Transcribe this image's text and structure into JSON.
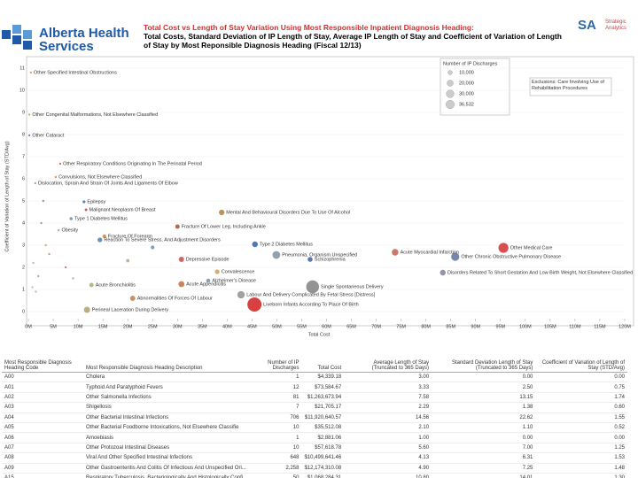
{
  "header": {
    "logo": "Alberta Health Services",
    "title": "Total Cost vs Length of Stay Variation Using Most Responsible Inpatient Diagnosis Heading:",
    "subtitle": "Total Costs, Standard Deviation of IP Length of Stay, Average IP Length of Stay and Coefficient of Variation of Length of Stay by Most Reponsible Diagnosis Heading (Fiscal 12/13)",
    "brand": "SA",
    "brand_sub": "Strategic Analytics"
  },
  "chart_data": {
    "type": "scatter",
    "x_label": "Total Cost",
    "y_label": "Coefficient of Variation of Length of Stay (STD/Avg)",
    "xlim": [
      0,
      120
    ],
    "xticks": [
      {
        "value": 0,
        "label": "0M"
      },
      {
        "value": 5,
        "label": "5M"
      },
      {
        "value": 10,
        "label": "10M"
      },
      {
        "value": 15,
        "label": "15M"
      },
      {
        "value": 20,
        "label": "20M"
      },
      {
        "value": 25,
        "label": "25M"
      },
      {
        "value": 30,
        "label": "30M"
      },
      {
        "value": 35,
        "label": "35M"
      },
      {
        "value": 40,
        "label": "40M"
      },
      {
        "value": 45,
        "label": "45M"
      },
      {
        "value": 50,
        "label": "50M"
      },
      {
        "value": 55,
        "label": "55M"
      },
      {
        "value": 60,
        "label": "60M"
      },
      {
        "value": 65,
        "label": "65M"
      },
      {
        "value": 70,
        "label": "70M"
      },
      {
        "value": 75,
        "label": "75M"
      },
      {
        "value": 80,
        "label": "80M"
      },
      {
        "value": 85,
        "label": "85M"
      },
      {
        "value": 90,
        "label": "90M"
      },
      {
        "value": 95,
        "label": "95M"
      },
      {
        "value": 100,
        "label": "100M"
      },
      {
        "value": 105,
        "label": "105M"
      },
      {
        "value": 110,
        "label": "110M"
      },
      {
        "value": 115,
        "label": "115M"
      },
      {
        "value": 120,
        "label": "120M"
      }
    ],
    "ylim": [
      0,
      11
    ],
    "yticks": [
      0,
      1,
      2,
      3,
      4,
      5,
      6,
      7,
      8,
      9,
      10,
      11
    ],
    "point_labels": [
      "Other Specified Intestinal Obstructions",
      "Other Congenital Malformations, Not Elsewhere Classified",
      "Other Cataract",
      "Other Respiratory Conditions Originating In The Perinatal Period",
      "Convulsions, Not Elsewhere Classified",
      "Dislocation, Sprain And Strain Of Joints And Ligaments Of Elbow",
      "Epilepsy",
      "Malignant Neoplasm Of Breast",
      "Type 1 Diabetes Mellitus",
      "Obesity",
      "Fracture Of Forearm",
      "Fracture Of Lower Leg, Including Ankle",
      "Mental And Behavioural Disorders Due To Use Of Alcohol",
      "Reaction To Severe Stress, And Adjustment Disorders",
      "Type 2 Diabetes Mellitus",
      "Depressive Episode",
      "Convalescence",
      "Alzheimer's Disease",
      "Acute Bronchiolitis",
      "Acute Appendicitis",
      "Pneumonia, Organism Unspecified",
      "Schizophrenia",
      "Acute Myocardial Infarction",
      "Other Chronic Obstructive Pulmonary Disease",
      "Other Medical Care",
      "Disorders Related To Short Gestation And Low Birth Weight, Not Elsewhere Classified",
      "Single Spontaneous Delivery",
      "Labour And Delivery Complicated By Fetal Stress [Distress]",
      "Liveborn Infants According To Place Of Birth",
      "Perineal Laceration During Delivery",
      "Abnormalities Of Forces Of Labour",
      null,
      null,
      null,
      null,
      null,
      null,
      null,
      null,
      null,
      null,
      null,
      null
    ],
    "x": [
      0.5,
      0.2,
      0.2,
      6.4,
      5.5,
      1.4,
      11.2,
      11.6,
      8.6,
      6.1,
      15.3,
      30.0,
      38.9,
      14.4,
      45.6,
      30.8,
      38.0,
      36.2,
      12.7,
      30.8,
      49.9,
      56.7,
      73.8,
      85.9,
      95.6,
      83.4,
      57.2,
      42.8,
      45.5,
      11.8,
      21.0,
      1.0,
      2.0,
      3.5,
      0.8,
      4.2,
      2.6,
      1.5,
      7.5,
      9.0,
      3.0,
      20.0,
      25.0
    ],
    "values": [
      10.8,
      8.9,
      7.96,
      6.68,
      6.08,
      5.8,
      4.96,
      4.6,
      4.2,
      3.68,
      3.4,
      3.84,
      4.48,
      3.24,
      3.04,
      2.36,
      1.8,
      1.4,
      1.2,
      1.24,
      2.56,
      2.36,
      2.68,
      2.48,
      2.88,
      1.76,
      1.12,
      0.76,
      0.32,
      0.08,
      0.6,
      2.2,
      1.6,
      3.0,
      1.1,
      2.6,
      4.0,
      0.9,
      2.0,
      1.5,
      5.0,
      2.3,
      2.9
    ],
    "sizes": [
      50,
      60,
      400,
      300,
      900,
      200,
      1500,
      1200,
      1800,
      900,
      2500,
      3500,
      5500,
      4000,
      6000,
      5000,
      4000,
      3000,
      3500,
      6500,
      11000,
      4500,
      8000,
      12000,
      18000,
      6000,
      30000,
      10000,
      36532,
      7000,
      5000,
      200,
      300,
      150,
      400,
      250,
      100,
      600,
      800,
      500,
      120,
      2000,
      2500
    ],
    "colors": [
      "#c8a040",
      "#a0b060",
      "#6080b0",
      "#c06040",
      "#d09040",
      "#80a0c0",
      "#4070b0",
      "#c04040",
      "#6090c0",
      "#a0a0a0",
      "#d08030",
      "#a05030",
      "#b08040",
      "#5080b0",
      "#3060b0",
      "#c05050",
      "#d0a050",
      "#7090b0",
      "#a0b070",
      "#c07040",
      "#8090a0",
      "#4060a0",
      "#c06050",
      "#6070a0",
      "#d03030",
      "#8080a0",
      "#808080",
      "#909090",
      "#d02020",
      "#b0a070",
      "#c08050",
      "#c0b080",
      "#90a0b0",
      "#d0a060",
      "#a0c0a0",
      "#c09070",
      "#8090b0",
      "#b0b0b0",
      "#c07060",
      "#90b0c0",
      "#a08060",
      "#c0a080",
      "#7090a0"
    ],
    "size_legend": {
      "title": "Number of IP Discharges",
      "items": [
        {
          "value": 10000,
          "label": "10,000"
        },
        {
          "value": 20000,
          "label": "20,000"
        },
        {
          "value": 30000,
          "label": "30,000"
        },
        {
          "value": 36532,
          "label": "36,532"
        }
      ]
    },
    "annotation": "Exclusions: Care Involving Use of Rehabilitation Procedures"
  },
  "table": {
    "columns": [
      "Most Responsible Diagnosis Heading Code",
      "Most Responsible Diagnosis Heading Description",
      "Number of IP Discharges",
      "Total Cost",
      "Average Length of Stay (Truncated to 365 Days)",
      "Standard Deviation Length of Stay (Truncated to 365 Days)",
      "Coefficient of Variation of Length of Stay (STD/Avg)"
    ],
    "rows": [
      [
        "A00",
        "Cholera",
        "1",
        "$4,339.18",
        "3.00",
        "0.00",
        "0.00"
      ],
      [
        "A01",
        "Typhoid And Paratyphoid Fevers",
        "12",
        "$73,584.67",
        "3.33",
        "2.50",
        "0.75"
      ],
      [
        "A02",
        "Other Salmonella Infections",
        "81",
        "$1,263,673.94",
        "7.58",
        "13.15",
        "1.74"
      ],
      [
        "A03",
        "Shigellosis",
        "7",
        "$21,705.17",
        "2.29",
        "1.38",
        "0.60"
      ],
      [
        "A04",
        "Other Bacterial Intestinal Infections",
        "706",
        "$11,920,640.57",
        "14.56",
        "22.62",
        "1.55"
      ],
      [
        "A05",
        "Other Bacterial Foodborne Intoxications, Not Elsewhere Classifie",
        "10",
        "$35,512.08",
        "2.10",
        "1.10",
        "0.52"
      ],
      [
        "A06",
        "Amoebiasis",
        "1",
        "$2,881.06",
        "1.00",
        "0.00",
        "0.00"
      ],
      [
        "A07",
        "Other Protozoal Intestinal Diseases",
        "10",
        "$57,618.78",
        "5.60",
        "7.00",
        "1.25"
      ],
      [
        "A08",
        "Viral And Other Specified Intestinal Infections",
        "648",
        "$10,499,641.46",
        "4.13",
        "6.31",
        "1.53"
      ],
      [
        "A09",
        "Other Gastroenteritis And Colitis Of Infectious And Unspecified Ori...",
        "2,258",
        "$12,174,310.08",
        "4.90",
        "7.25",
        "1.48"
      ],
      [
        "A15",
        "Respiratory Tuberculosis, Bacteriologically And Histologically Confi",
        "50",
        "$1,068,284.31",
        "10.80",
        "14.01",
        "1.30"
      ]
    ]
  }
}
